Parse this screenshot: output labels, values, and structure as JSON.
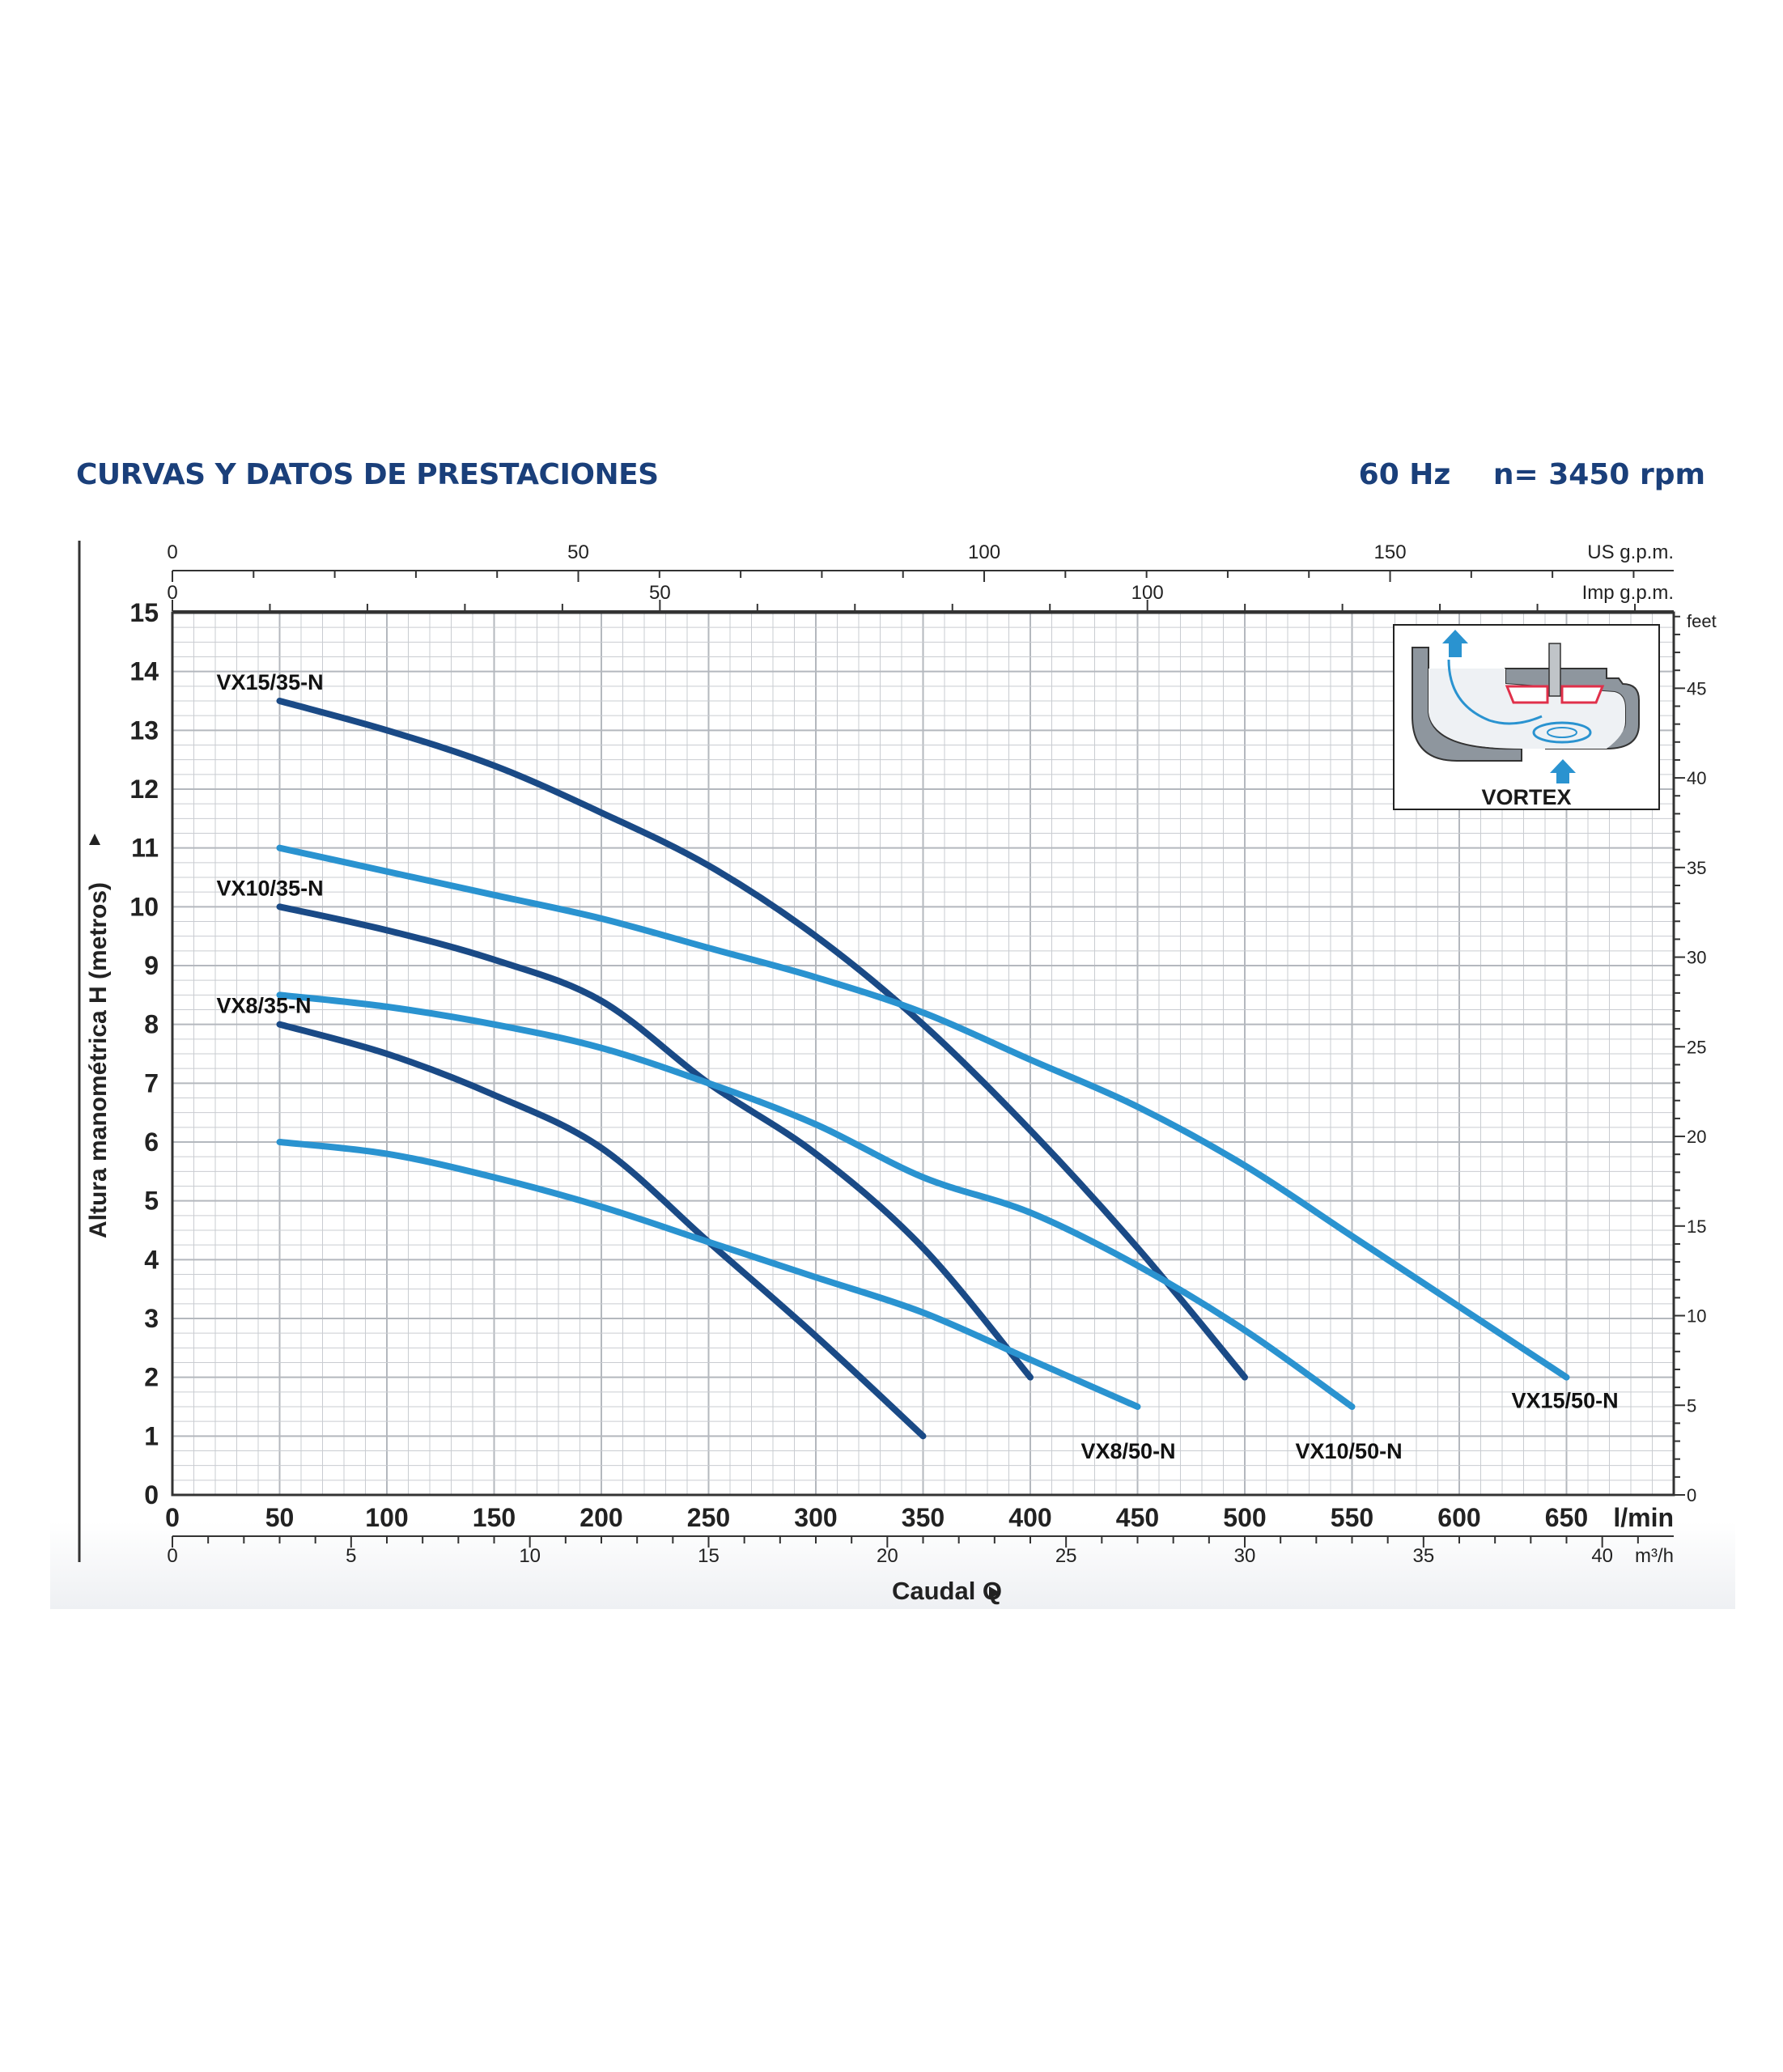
{
  "header": {
    "title": "CURVAS Y DATOS DE PRESTACIONES",
    "frequency": "60 Hz",
    "speed": "n= 3450 rpm"
  },
  "colors": {
    "title": "#1a3f7a",
    "dark_curve": "#1a4a86",
    "light_curve": "#2a93d0",
    "grid": "#c9ccd1",
    "axis": "#333333"
  },
  "inset": {
    "label": "VORTEX",
    "icon": "vortex-impeller-diagram-icon"
  },
  "chart_data": {
    "type": "line",
    "xlabel": "Caudal Q",
    "ylabel": "Altura manométrica H (metros)",
    "x_unit": "l/min",
    "xlim": [
      0,
      700
    ],
    "ylim": [
      0,
      15
    ],
    "grid": true,
    "x_ticks": [
      0,
      50,
      100,
      150,
      200,
      250,
      300,
      350,
      400,
      450,
      500,
      550,
      600,
      650
    ],
    "y_ticks": [
      0,
      1,
      2,
      3,
      4,
      5,
      6,
      7,
      8,
      9,
      10,
      11,
      12,
      13,
      14,
      15
    ],
    "secondary_axes": {
      "us_gpm": {
        "unit": "US g.p.m.",
        "ticks": [
          0,
          50,
          100,
          150
        ]
      },
      "imp_gpm": {
        "unit": "Imp g.p.m.",
        "ticks": [
          0,
          50,
          100
        ]
      },
      "m3h": {
        "unit": "m³/h",
        "ticks": [
          0,
          5,
          10,
          15,
          20,
          25,
          30,
          35,
          40
        ]
      },
      "feet": {
        "unit": "feet",
        "ticks": [
          0,
          5,
          10,
          15,
          20,
          25,
          30,
          35,
          40,
          45
        ]
      }
    },
    "series": [
      {
        "name": "VX15/35-N",
        "style": "dark",
        "label_pos": "start",
        "points": [
          [
            50,
            13.5
          ],
          [
            100,
            13.0
          ],
          [
            150,
            12.4
          ],
          [
            200,
            11.6
          ],
          [
            250,
            10.7
          ],
          [
            300,
            9.5
          ],
          [
            350,
            8.0
          ],
          [
            400,
            6.2
          ],
          [
            450,
            4.2
          ],
          [
            500,
            2.0
          ]
        ]
      },
      {
        "name": "VX10/35-N",
        "style": "dark",
        "label_pos": "start",
        "points": [
          [
            50,
            10.0
          ],
          [
            100,
            9.6
          ],
          [
            150,
            9.1
          ],
          [
            200,
            8.4
          ],
          [
            250,
            7.0
          ],
          [
            300,
            5.8
          ],
          [
            350,
            4.2
          ],
          [
            400,
            2.0
          ]
        ]
      },
      {
        "name": "VX8/35-N",
        "style": "dark",
        "label_pos": "start",
        "points": [
          [
            50,
            8.0
          ],
          [
            100,
            7.5
          ],
          [
            150,
            6.8
          ],
          [
            200,
            5.9
          ],
          [
            250,
            4.3
          ],
          [
            300,
            2.7
          ],
          [
            350,
            1.0
          ]
        ]
      },
      {
        "name": "VX15/50-N",
        "style": "light",
        "label_pos": "end",
        "points": [
          [
            50,
            11.0
          ],
          [
            100,
            10.6
          ],
          [
            150,
            10.2
          ],
          [
            200,
            9.8
          ],
          [
            250,
            9.3
          ],
          [
            300,
            8.8
          ],
          [
            350,
            8.2
          ],
          [
            400,
            7.4
          ],
          [
            450,
            6.6
          ],
          [
            500,
            5.6
          ],
          [
            550,
            4.4
          ],
          [
            600,
            3.2
          ],
          [
            650,
            2.0
          ]
        ]
      },
      {
        "name": "VX10/50-N",
        "style": "light",
        "label_pos": "end",
        "points": [
          [
            50,
            8.5
          ],
          [
            100,
            8.3
          ],
          [
            150,
            8.0
          ],
          [
            200,
            7.6
          ],
          [
            250,
            7.0
          ],
          [
            300,
            6.3
          ],
          [
            350,
            5.4
          ],
          [
            400,
            4.8
          ],
          [
            450,
            3.9
          ],
          [
            500,
            2.8
          ],
          [
            550,
            1.5
          ]
        ]
      },
      {
        "name": "VX8/50-N",
        "style": "light",
        "label_pos": "end",
        "points": [
          [
            50,
            6.0
          ],
          [
            100,
            5.8
          ],
          [
            150,
            5.4
          ],
          [
            200,
            4.9
          ],
          [
            250,
            4.3
          ],
          [
            300,
            3.7
          ],
          [
            350,
            3.1
          ],
          [
            400,
            2.3
          ],
          [
            450,
            1.5
          ]
        ]
      }
    ]
  }
}
